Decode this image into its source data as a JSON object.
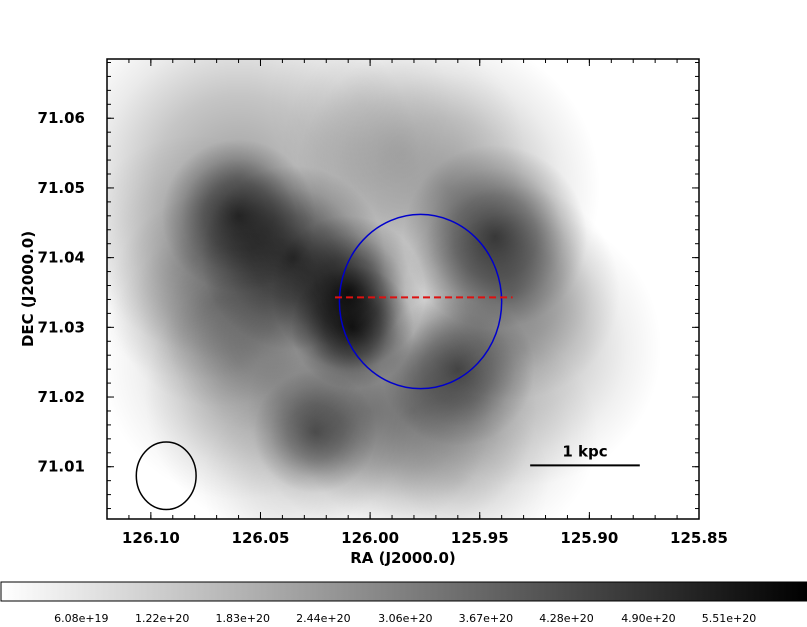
{
  "chart_data": {
    "type": "heatmap",
    "title": "",
    "xlabel": "RA (J2000.0)",
    "ylabel": "DEC (J2000.0)",
    "xlim": [
      126.12,
      125.85
    ],
    "ylim": [
      71.0025,
      71.0685
    ],
    "x_ticks": [
      126.1,
      126.05,
      126.0,
      125.95,
      125.9,
      125.85
    ],
    "x_tick_labels": [
      "126.10",
      "126.05",
      "126.00",
      "125.95",
      "125.90",
      "125.85"
    ],
    "y_ticks": [
      71.01,
      71.02,
      71.03,
      71.04,
      71.05,
      71.06
    ],
    "y_tick_labels": [
      "71.01",
      "71.02",
      "71.03",
      "71.04",
      "71.05",
      "71.06"
    ],
    "colormap": "gray_r",
    "colorbar": {
      "orientation": "horizontal",
      "placement": "bottom",
      "range": [
        0,
        6.1e+20
      ],
      "ticks": [
        6.08e+19,
        1.22e+20,
        1.83e+20,
        2.44e+20,
        3.06e+20,
        3.67e+20,
        4.28e+20,
        4.9e+20,
        5.51e+20
      ],
      "tick_labels": [
        "6.08e+19",
        "1.22e+20",
        "1.83e+20",
        "2.44e+20",
        "3.06e+20",
        "3.67e+20",
        "4.28e+20",
        "4.90e+20",
        "5.51e+20"
      ]
    },
    "emission_blobs": [
      {
        "ra": 126.06,
        "dec": 71.0515,
        "value": 2.3e+20,
        "sigma": 0.012
      },
      {
        "ra": 126.06,
        "dec": 71.046,
        "value": 4.4e+20,
        "sigma": 0.005
      },
      {
        "ra": 126.035,
        "dec": 71.04,
        "value": 4.6e+20,
        "sigma": 0.006
      },
      {
        "ra": 126.01,
        "dec": 71.035,
        "value": 5.4e+20,
        "sigma": 0.005
      },
      {
        "ra": 126.008,
        "dec": 71.03,
        "value": 5e+20,
        "sigma": 0.004
      },
      {
        "ra": 126.07,
        "dec": 71.034,
        "value": 1.8e+20,
        "sigma": 0.007
      },
      {
        "ra": 126.08,
        "dec": 71.04,
        "value": 1.2e+20,
        "sigma": 0.008
      },
      {
        "ra": 125.965,
        "dec": 71.05,
        "value": 2e+20,
        "sigma": 0.01
      },
      {
        "ra": 125.943,
        "dec": 71.043,
        "value": 4e+20,
        "sigma": 0.006
      },
      {
        "ra": 125.935,
        "dec": 71.035,
        "value": 2.3e+20,
        "sigma": 0.007
      },
      {
        "ra": 125.93,
        "dec": 71.027,
        "value": 1.6e+20,
        "sigma": 0.009
      },
      {
        "ra": 125.96,
        "dec": 71.024,
        "value": 3.4e+20,
        "sigma": 0.005
      },
      {
        "ra": 125.98,
        "dec": 71.018,
        "value": 2.2e+20,
        "sigma": 0.008
      },
      {
        "ra": 126.0,
        "dec": 71.018,
        "value": 2e+20,
        "sigma": 0.008
      },
      {
        "ra": 126.025,
        "dec": 71.015,
        "value": 3e+20,
        "sigma": 0.004
      },
      {
        "ra": 126.04,
        "dec": 71.02,
        "value": 1.6e+20,
        "sigma": 0.009
      },
      {
        "ra": 126.06,
        "dec": 71.025,
        "value": 1.4e+20,
        "sigma": 0.009
      },
      {
        "ra": 126.045,
        "dec": 71.03,
        "value": 1.2e+20,
        "sigma": 0.007
      },
      {
        "ra": 125.985,
        "dec": 71.055,
        "value": 9e+19,
        "sigma": 0.008
      },
      {
        "ra": 126.005,
        "dec": 71.062,
        "value": 5e+19,
        "sigma": 0.006
      },
      {
        "ra": 125.945,
        "dec": 71.0145,
        "value": 1e+20,
        "sigma": 0.007
      },
      {
        "ra": 126.035,
        "dec": 71.0075,
        "value": 5e+19,
        "sigma": 0.006
      },
      {
        "ra": 125.96,
        "dec": 71.008,
        "value": 6e+19,
        "sigma": 0.006
      }
    ],
    "overlays": {
      "circle": {
        "ra": 125.977,
        "dec": 71.0337,
        "radius_ra": 0.037,
        "radius_dec": 0.0125,
        "color": "#0000cc"
      },
      "dashed_line": {
        "ra": [
          126.016,
          125.935
        ],
        "dec": [
          71.0343,
          71.0343
        ],
        "color": "#dd1111"
      },
      "beam_ellipse": {
        "ra": 126.093,
        "dec": 71.0087,
        "radius_ra": 0.0058,
        "radius_dec": 0.0022,
        "color": "#000000"
      },
      "scale_bar": {
        "label": "1 kpc",
        "ra": [
          125.927,
          125.877
        ],
        "dec": 71.0102,
        "color": "#000000"
      }
    }
  }
}
